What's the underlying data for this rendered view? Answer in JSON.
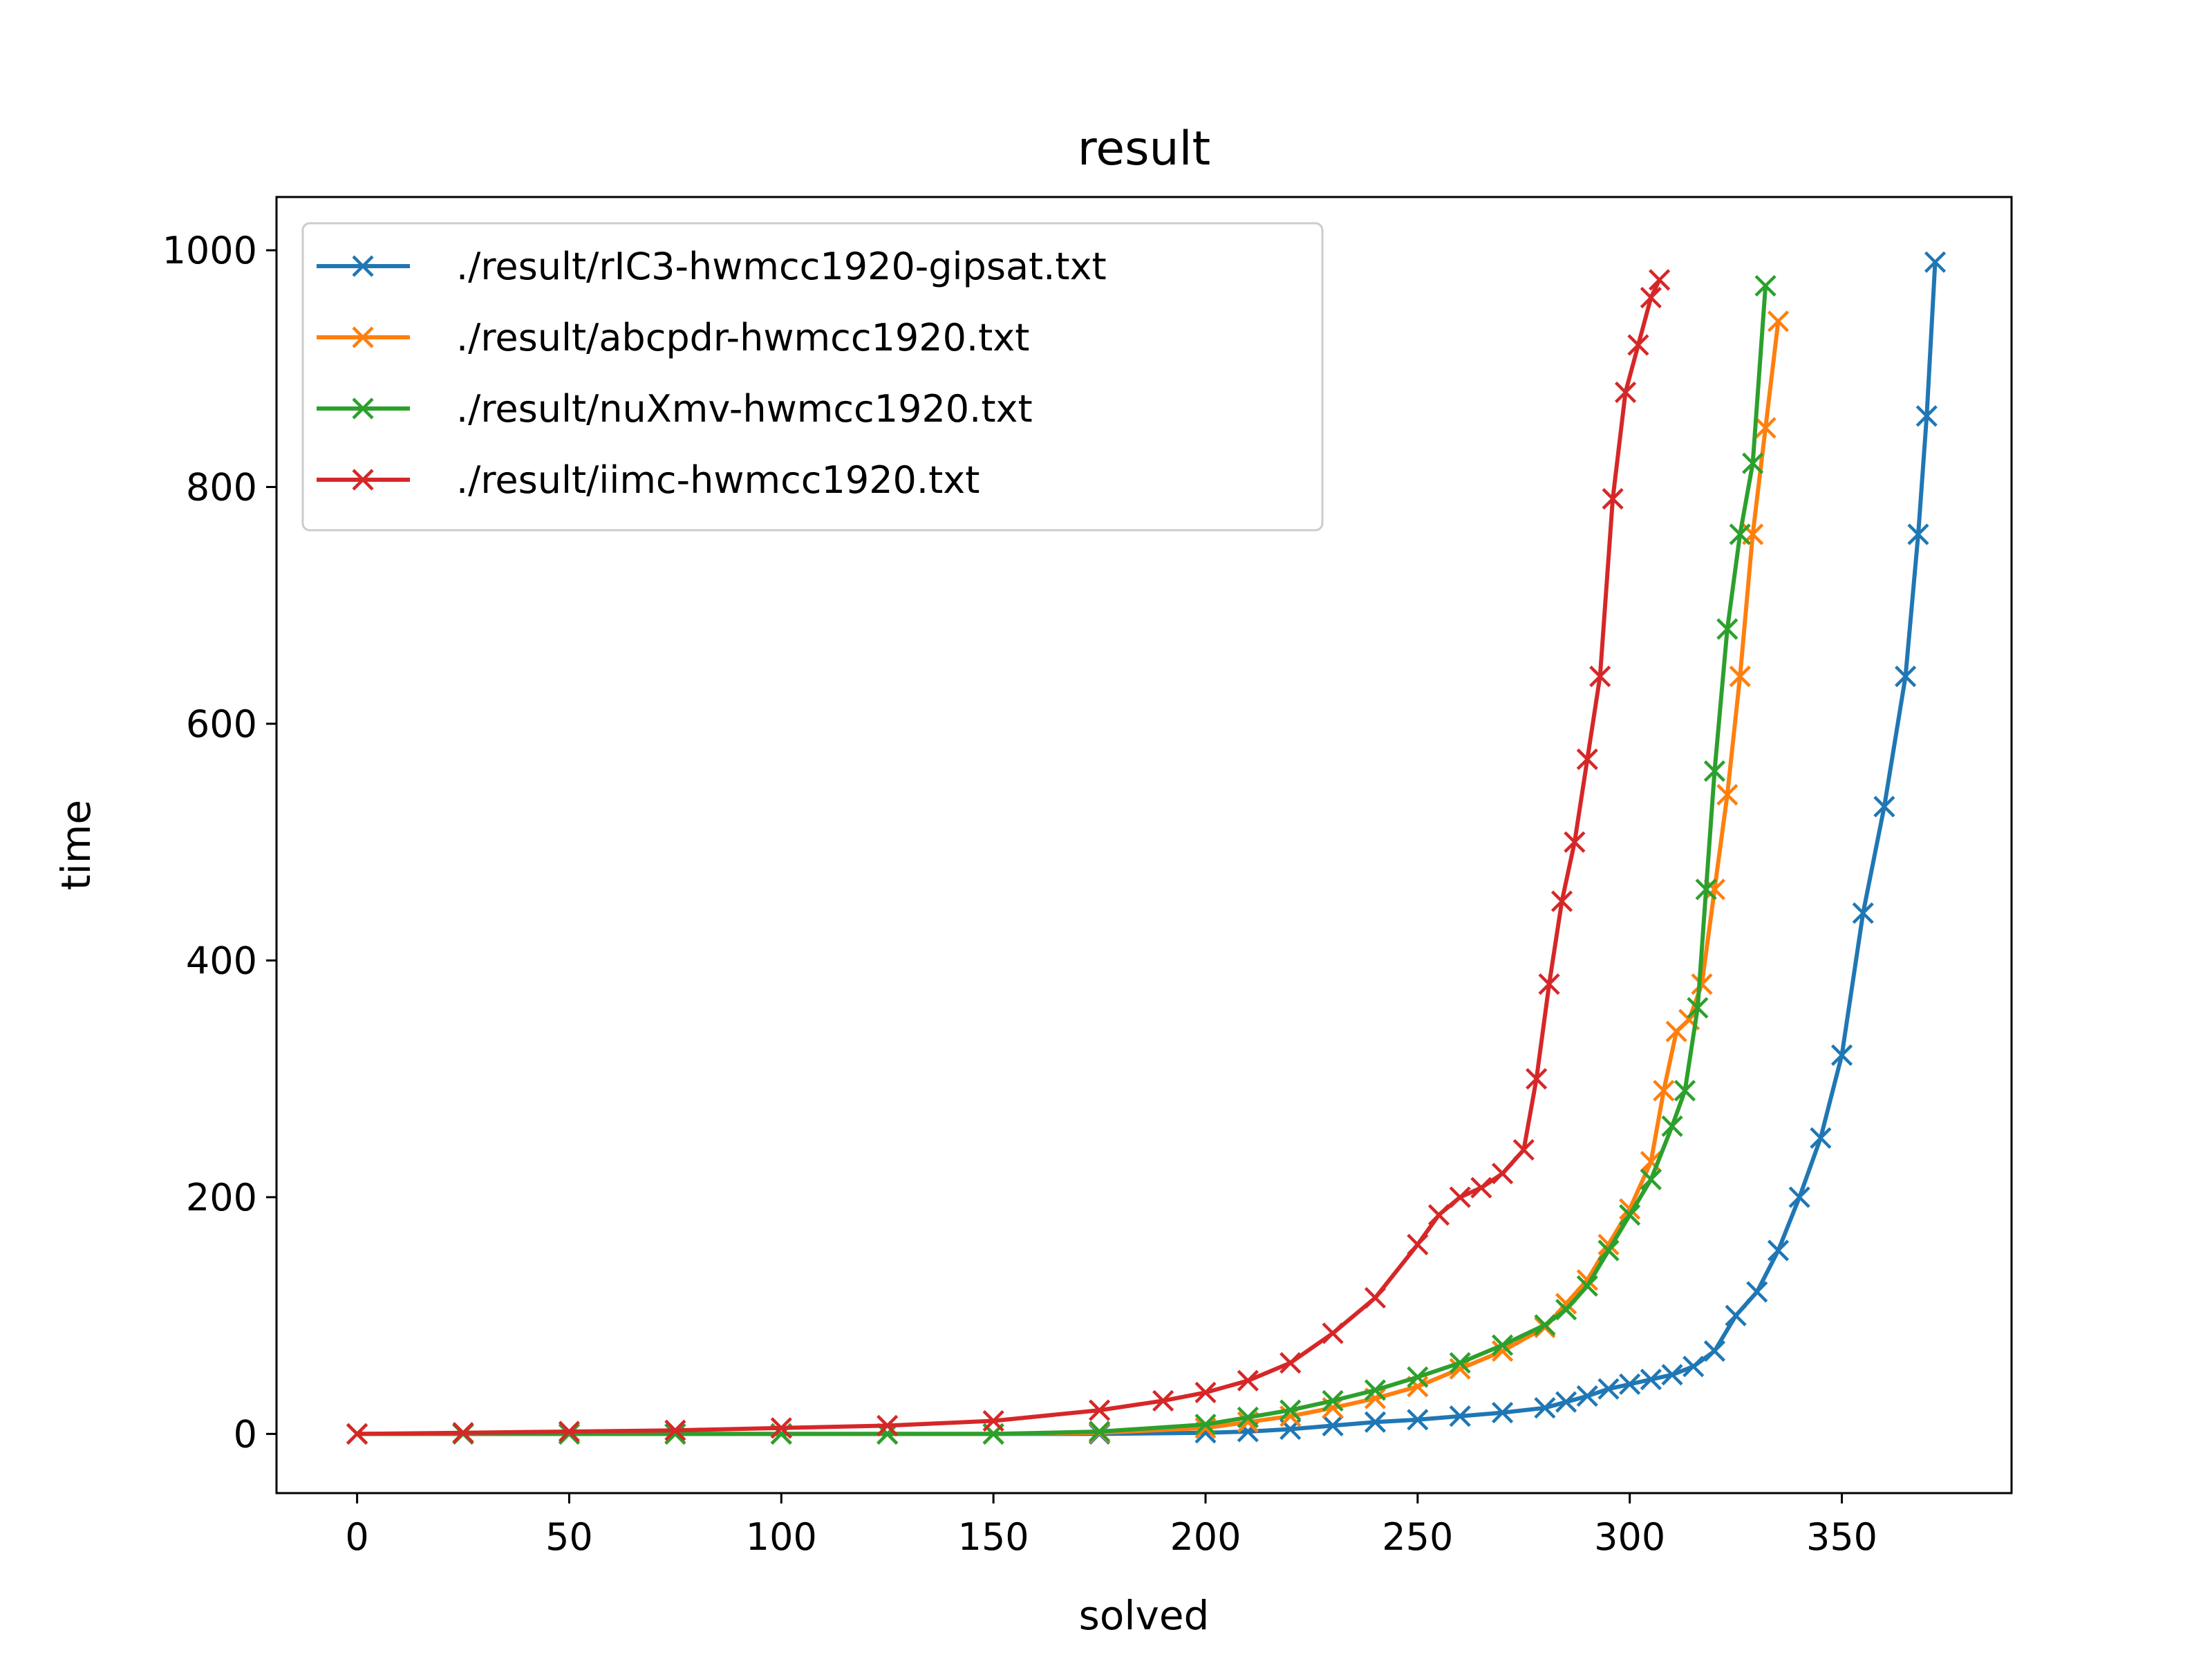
{
  "chart_data": {
    "type": "line",
    "title": "result",
    "xlabel": "solved",
    "ylabel": "time",
    "xlim": [
      -19,
      390
    ],
    "ylim": [
      -50,
      1045
    ],
    "xticks": [
      0,
      50,
      100,
      150,
      200,
      250,
      300,
      350
    ],
    "yticks": [
      0,
      200,
      400,
      600,
      800,
      1000
    ],
    "grid": false,
    "legend_position": "top-left",
    "marker": "x",
    "series": [
      {
        "name": "./result/rIC3-hwmcc1920-gipsat.txt",
        "color": "#1f77b4",
        "x": [
          0,
          25,
          50,
          75,
          100,
          125,
          150,
          175,
          200,
          210,
          220,
          230,
          240,
          250,
          260,
          270,
          280,
          285,
          290,
          295,
          300,
          305,
          310,
          315,
          320,
          325,
          330,
          335,
          340,
          345,
          350,
          355,
          360,
          365,
          368,
          370,
          372
        ],
        "values": [
          0,
          0,
          0,
          0,
          0,
          0,
          0,
          0,
          1,
          2,
          4,
          7,
          10,
          12,
          15,
          18,
          22,
          27,
          32,
          38,
          42,
          46,
          50,
          57,
          70,
          100,
          120,
          155,
          200,
          250,
          320,
          440,
          530,
          640,
          760,
          860,
          990
        ]
      },
      {
        "name": "./result/abcpdr-hwmcc1920.txt",
        "color": "#ff7f0e",
        "x": [
          0,
          25,
          50,
          75,
          100,
          125,
          150,
          175,
          200,
          210,
          220,
          230,
          240,
          250,
          260,
          270,
          280,
          285,
          290,
          295,
          300,
          305,
          308,
          311,
          314,
          317,
          320,
          323,
          326,
          329,
          332,
          335
        ],
        "values": [
          0,
          0,
          0,
          0,
          0,
          0,
          0,
          1,
          5,
          10,
          15,
          22,
          30,
          40,
          55,
          70,
          90,
          110,
          130,
          160,
          190,
          230,
          290,
          340,
          350,
          380,
          460,
          540,
          640,
          760,
          850,
          940
        ]
      },
      {
        "name": "./result/nuXmv-hwmcc1920.txt",
        "color": "#2ca02c",
        "x": [
          0,
          25,
          50,
          75,
          100,
          125,
          150,
          175,
          200,
          210,
          220,
          230,
          240,
          250,
          260,
          270,
          280,
          285,
          290,
          295,
          300,
          305,
          310,
          313,
          316,
          318,
          320,
          323,
          326,
          329,
          332
        ],
        "values": [
          0,
          0,
          0,
          0,
          0,
          0,
          0,
          2,
          8,
          14,
          20,
          28,
          37,
          48,
          60,
          75,
          92,
          105,
          125,
          155,
          185,
          215,
          260,
          290,
          360,
          460,
          560,
          680,
          760,
          820,
          970
        ]
      },
      {
        "name": "./result/iimc-hwmcc1920.txt",
        "color": "#d62728",
        "x": [
          0,
          25,
          50,
          75,
          100,
          125,
          150,
          175,
          190,
          200,
          210,
          220,
          230,
          240,
          250,
          255,
          260,
          265,
          270,
          275,
          278,
          281,
          284,
          287,
          290,
          293,
          296,
          299,
          302,
          305,
          307
        ],
        "values": [
          0,
          1,
          2,
          3,
          5,
          7,
          11,
          20,
          28,
          35,
          45,
          60,
          85,
          115,
          160,
          185,
          200,
          208,
          220,
          240,
          300,
          380,
          450,
          500,
          570,
          640,
          790,
          880,
          920,
          960,
          975
        ]
      }
    ]
  }
}
